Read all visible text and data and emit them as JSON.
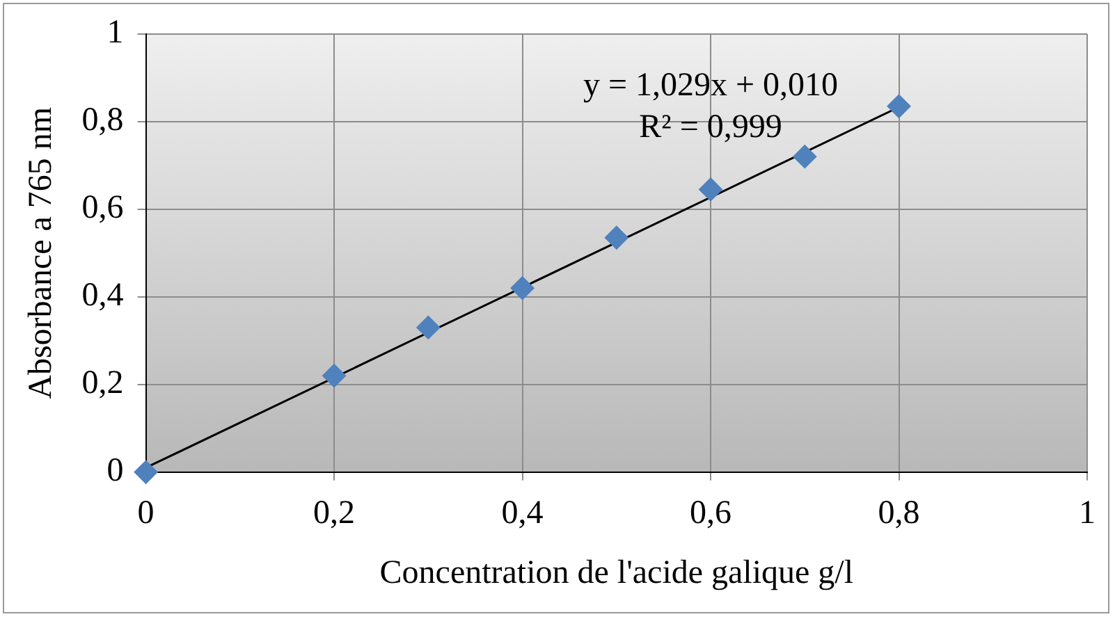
{
  "chart_data": {
    "type": "scatter",
    "xlabel": "Concentration de l'acide galique g/l",
    "ylabel": "Absorbance a 765 nm",
    "series": [
      {
        "color": "#4f81bd",
        "marker": "diamond",
        "x": [
          0,
          0.2,
          0.3,
          0.4,
          0.5,
          0.6,
          0.7,
          0.8
        ],
        "values": [
          0,
          0.22,
          0.33,
          0.42,
          0.535,
          0.645,
          0.72,
          0.835
        ]
      },
      {
        "type": "line",
        "color": "#000000",
        "marker": "none",
        "x": [
          0,
          0.8
        ],
        "values": [
          0.01,
          0.833
        ]
      }
    ],
    "annotations": [
      "y = 1,029x + 0,010",
      "R² = 0,999"
    ],
    "xlim": [
      0,
      1
    ],
    "ylim": [
      0,
      1
    ],
    "xticks": [
      0,
      {
        "value": 0.2,
        "label": "0,2"
      },
      {
        "value": 0.4,
        "label": "0,4"
      },
      {
        "value": 0.6,
        "label": "0,6"
      },
      {
        "value": 0.8,
        "label": "0,8"
      },
      1
    ],
    "yticks": [
      0,
      {
        "value": 0.2,
        "label": "0,2"
      },
      {
        "value": 0.4,
        "label": "0,4"
      },
      {
        "value": 0.6,
        "label": "0,6"
      },
      {
        "value": 0.8,
        "label": "0,8"
      },
      1
    ],
    "grid": true,
    "legend": false
  }
}
